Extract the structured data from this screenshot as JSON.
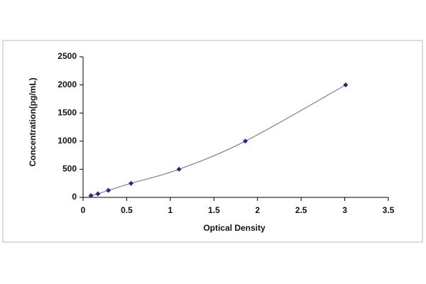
{
  "chart_data": {
    "type": "scatter",
    "x_label": "Optical Density",
    "y_label": "Concentration(pg/mL)",
    "x": [
      0.09,
      0.17,
      0.29,
      0.55,
      1.1,
      1.86,
      3.01
    ],
    "series": [
      {
        "values": [
          31,
          63,
          125,
          250,
          500,
          1000,
          2000
        ],
        "color": "#1f2a80",
        "line_color": "#7a7f9a"
      }
    ],
    "xlim": [
      0,
      3.5
    ],
    "xticks": [
      0,
      0.5,
      1,
      1.5,
      2,
      2.5,
      3,
      3.5
    ],
    "ylim": [
      0,
      2500
    ],
    "yticks": [
      0,
      500,
      1000,
      1500,
      2000,
      2500
    ],
    "grid": false
  }
}
